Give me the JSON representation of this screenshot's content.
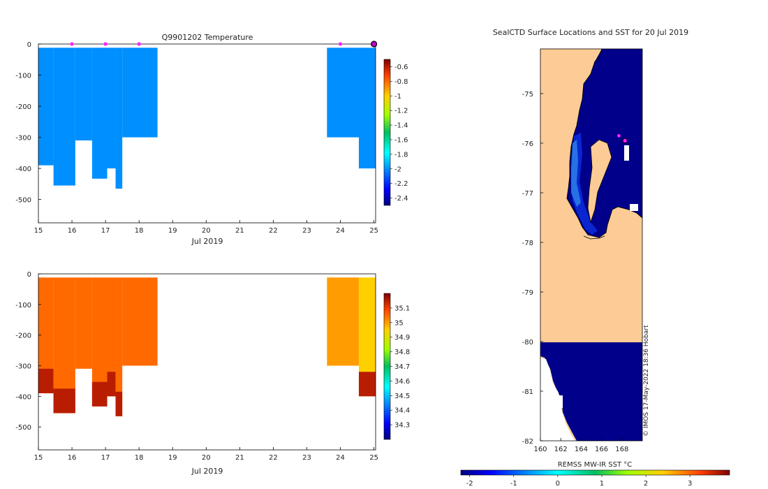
{
  "chart_data": [
    {
      "type": "heatmap",
      "panel": "temperature-section",
      "title": "Q9901202  Temperature",
      "xlabel": "Jul 2019",
      "ylabel": "",
      "xlim": [
        15,
        25.05
      ],
      "ylim": [
        -575,
        0
      ],
      "x_ticks": [
        "15",
        "16",
        "17",
        "18",
        "19",
        "20",
        "21",
        "22",
        "23",
        "24",
        "25"
      ],
      "y_ticks": [
        "0",
        "-100",
        "-200",
        "-300",
        "-400",
        "-500"
      ],
      "profile_markers_x": [
        16.0,
        17.0,
        18.0,
        24.0
      ],
      "end_marker_x": 25.0,
      "profiles": [
        {
          "x0": 15.0,
          "x1": 15.45,
          "bottom": 390,
          "value": -2.0
        },
        {
          "x0": 15.45,
          "x1": 16.1,
          "bottom": 455,
          "value": -2.0
        },
        {
          "x0": 16.1,
          "x1": 16.6,
          "bottom": 310,
          "value": -2.0
        },
        {
          "x0": 16.6,
          "x1": 17.05,
          "bottom": 433,
          "value": -2.0
        },
        {
          "x0": 17.05,
          "x1": 17.3,
          "bottom": 400,
          "value": -2.0
        },
        {
          "x0": 17.3,
          "x1": 17.5,
          "bottom": 465,
          "value": -2.0
        },
        {
          "x0": 17.5,
          "x1": 18.55,
          "bottom": 300,
          "value": -2.0
        },
        {
          "x0": 23.6,
          "x1": 24.55,
          "bottom": 300,
          "value": -2.0
        },
        {
          "x0": 24.55,
          "x1": 25.05,
          "bottom": 400,
          "value": -2.0
        }
      ],
      "colorbar": {
        "ticks": [
          "-0.6",
          "-0.8",
          "-1",
          "-1.2",
          "-1.4",
          "-1.6",
          "-1.8",
          "-2",
          "-2.2",
          "-2.4"
        ],
        "range": [
          -2.5,
          -0.5
        ]
      }
    },
    {
      "type": "heatmap",
      "panel": "salinity-section",
      "title": "",
      "xlabel": "Jul 2019",
      "ylabel": "",
      "xlim": [
        15,
        25.05
      ],
      "ylim": [
        -575,
        0
      ],
      "x_ticks": [
        "15",
        "16",
        "17",
        "18",
        "19",
        "20",
        "21",
        "22",
        "23",
        "24",
        "25"
      ],
      "y_ticks": [
        "0",
        "-100",
        "-200",
        "-300",
        "-400",
        "-500"
      ],
      "profiles": [
        {
          "x0": 15.0,
          "x1": 15.45,
          "bottom": 390,
          "value": 35.05
        },
        {
          "x0": 15.45,
          "x1": 16.1,
          "bottom": 455,
          "value": 35.05
        },
        {
          "x0": 16.1,
          "x1": 16.6,
          "bottom": 310,
          "value": 35.05
        },
        {
          "x0": 16.6,
          "x1": 17.05,
          "bottom": 433,
          "value": 35.05
        },
        {
          "x0": 17.05,
          "x1": 17.3,
          "bottom": 400,
          "value": 35.05
        },
        {
          "x0": 17.3,
          "x1": 17.5,
          "bottom": 465,
          "value": 35.05
        },
        {
          "x0": 17.5,
          "x1": 18.55,
          "bottom": 300,
          "value": 35.05
        },
        {
          "x0": 23.6,
          "x1": 24.55,
          "bottom": 300,
          "value": 35.0
        },
        {
          "x0": 24.55,
          "x1": 25.05,
          "bottom": 400,
          "value": 34.95
        }
      ],
      "colorbar": {
        "ticks": [
          "35.1",
          "35",
          "34.9",
          "34.8",
          "34.7",
          "34.6",
          "34.5",
          "34.4",
          "34.3"
        ],
        "range": [
          34.2,
          35.2
        ]
      }
    },
    {
      "type": "heatmap",
      "panel": "sst-map",
      "title": "SealCTD Surface Locations and SST for 20 Jul 2019",
      "xlabel": "REMSS MW-IR SST °C",
      "lon_range": [
        160,
        170
      ],
      "lat_range": [
        -82,
        -74.1
      ],
      "lon_ticks": [
        "160",
        "162",
        "164",
        "166",
        "168"
      ],
      "lat_ticks": [
        "-75",
        "-76",
        "-77",
        "-78",
        "-79",
        "-80",
        "-81",
        "-82"
      ],
      "positions": [
        {
          "lon": 167.7,
          "lat": -75.85
        },
        {
          "lon": 168.3,
          "lat": -75.95
        }
      ],
      "colorbar": {
        "ticks": [
          "-2",
          "-1",
          "0",
          "1",
          "2",
          "3"
        ],
        "range": [
          -2.2,
          3.9
        ]
      },
      "credit": "© IMOS 17-May-2022 18:36 Hobart"
    }
  ]
}
